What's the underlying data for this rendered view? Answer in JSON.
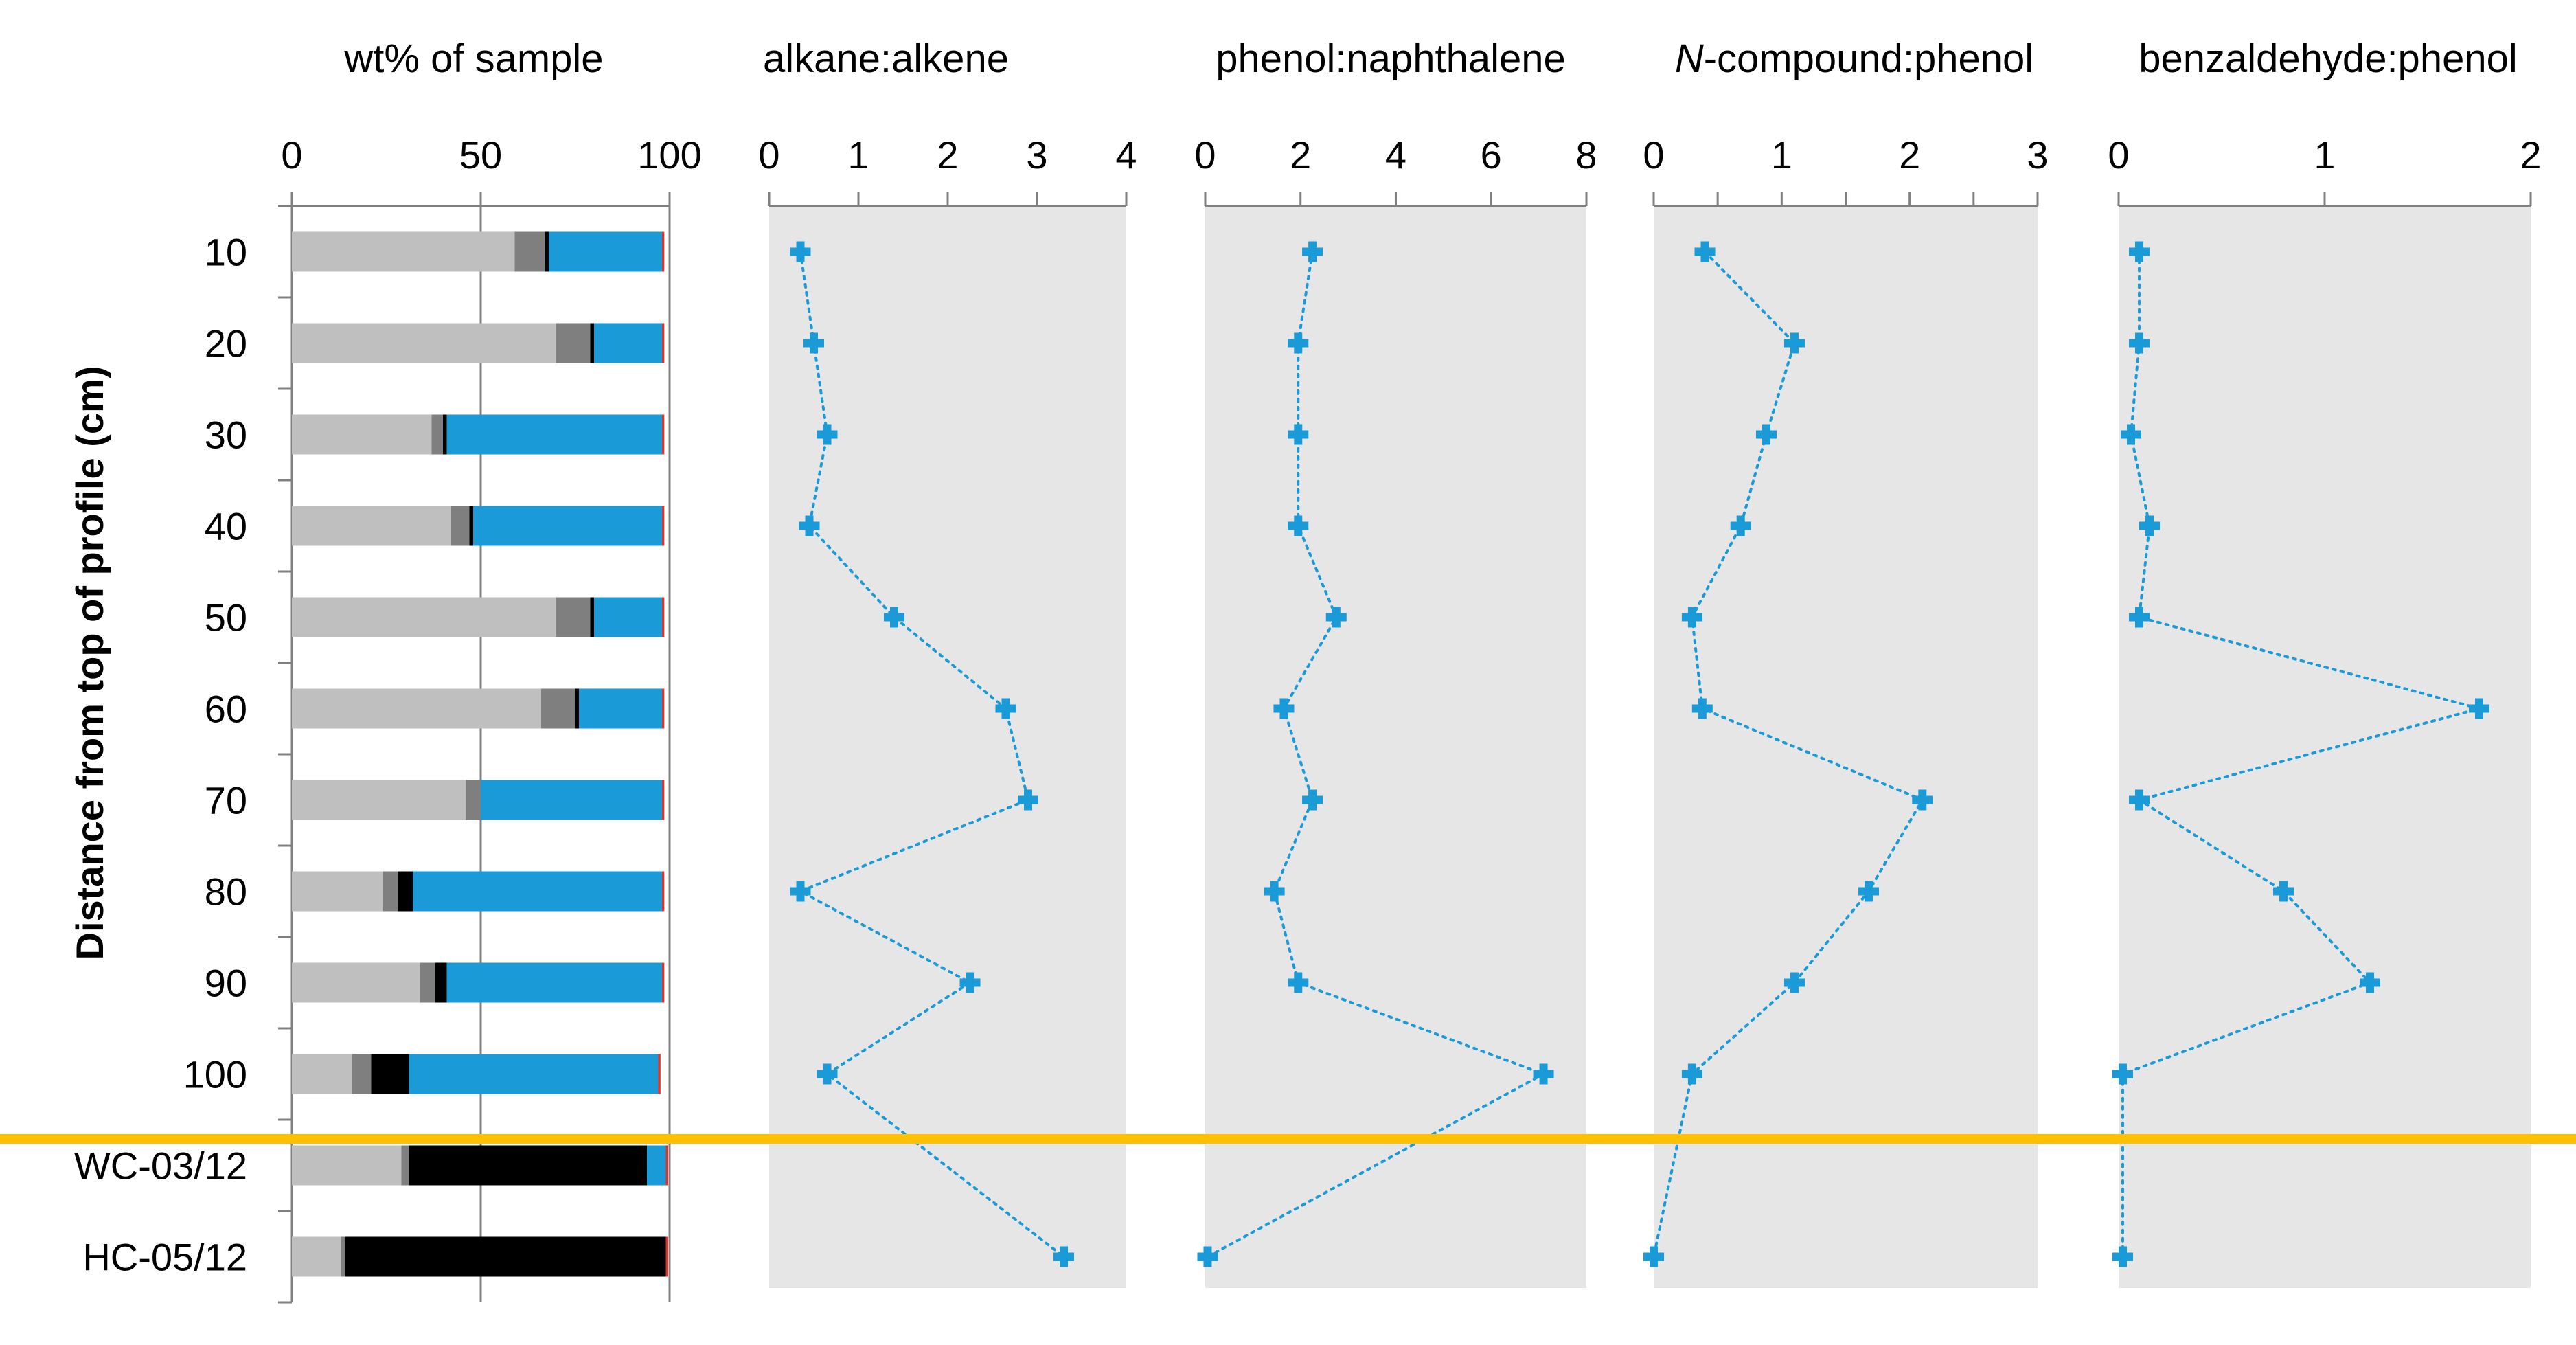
{
  "chart_data": [
    {
      "type": "bar",
      "stacked": true,
      "orientation": "horizontal",
      "title": "wt% of sample",
      "ylabel": "Distance from top of profile (cm)",
      "xlim": [
        0,
        100
      ],
      "x_ticks": [
        "0",
        "50",
        "100"
      ],
      "categories": [
        "10",
        "20",
        "30",
        "40",
        "50",
        "60",
        "70",
        "80",
        "90",
        "100",
        "WC-03/12",
        "HC-05/12"
      ],
      "series": [
        {
          "name": "light grey",
          "color": "#bfbfbf",
          "values": [
            59,
            70,
            37,
            42,
            70,
            66,
            46,
            24,
            34,
            16,
            29,
            13
          ]
        },
        {
          "name": "dark grey",
          "color": "#7f7f7f",
          "values": [
            8,
            9,
            3,
            5,
            9,
            9,
            4,
            4,
            4,
            5,
            2,
            1
          ]
        },
        {
          "name": "black",
          "color": "#000000",
          "values": [
            1,
            1,
            1,
            1,
            1,
            1,
            0,
            4,
            3,
            10,
            63,
            85
          ]
        },
        {
          "name": "blue",
          "color": "#1a9ad6",
          "values": [
            30,
            18,
            57,
            50,
            18,
            22,
            48,
            66,
            57,
            66,
            5,
            0
          ]
        },
        {
          "name": "red",
          "color": "#e8302a",
          "values": [
            0.6,
            0.6,
            0.6,
            0.6,
            0.6,
            0.6,
            0.6,
            0.6,
            0.6,
            0.6,
            0.6,
            0.6
          ]
        }
      ]
    },
    {
      "type": "line",
      "title": "alkane:alkene",
      "xlim": [
        0,
        4
      ],
      "x_ticks": [
        "0",
        "1",
        "2",
        "3",
        "4"
      ],
      "y": [
        5,
        15,
        25,
        35,
        45,
        55,
        65,
        75,
        85,
        95,
        105,
        115
      ],
      "values": [
        0.35,
        0.5,
        0.65,
        0.45,
        1.4,
        2.65,
        2.9,
        0.35,
        2.25,
        0.65,
        null,
        3.3
      ],
      "color": "#1a9ad6"
    },
    {
      "type": "line",
      "title": "phenol:naphthalene",
      "xlim": [
        0,
        8
      ],
      "x_ticks": [
        "0",
        "2",
        "4",
        "6",
        "8"
      ],
      "y": [
        5,
        15,
        25,
        35,
        45,
        55,
        65,
        75,
        85,
        95,
        105,
        115
      ],
      "values": [
        2.25,
        1.95,
        1.95,
        1.95,
        2.75,
        1.65,
        2.25,
        1.45,
        1.95,
        7.1,
        null,
        0.05
      ],
      "color": "#1a9ad6"
    },
    {
      "type": "line",
      "title_italic": "N",
      "title": "-compound:phenol",
      "xlim": [
        0,
        3
      ],
      "x_ticks": [
        "0",
        "0.5",
        "1",
        "1.5",
        "2",
        "2.5",
        "3"
      ],
      "y": [
        5,
        15,
        25,
        35,
        45,
        55,
        65,
        75,
        85,
        95,
        105,
        115
      ],
      "values": [
        0.4,
        1.1,
        0.88,
        0.68,
        0.3,
        0.38,
        2.1,
        1.68,
        1.1,
        0.3,
        null,
        0.0
      ],
      "color": "#1a9ad6"
    },
    {
      "type": "line",
      "title": "benzaldehyde:phenol",
      "xlim": [
        0,
        2
      ],
      "x_ticks": [
        "0",
        "1",
        "2"
      ],
      "y": [
        5,
        15,
        25,
        35,
        45,
        55,
        65,
        75,
        85,
        95,
        105,
        115
      ],
      "values": [
        0.1,
        0.1,
        0.06,
        0.15,
        0.1,
        1.75,
        0.1,
        0.8,
        1.22,
        0.02,
        null,
        0.02
      ],
      "color": "#1a9ad6"
    }
  ],
  "separator_color": "#ffc000",
  "plot_bg": "#e6e6e6"
}
